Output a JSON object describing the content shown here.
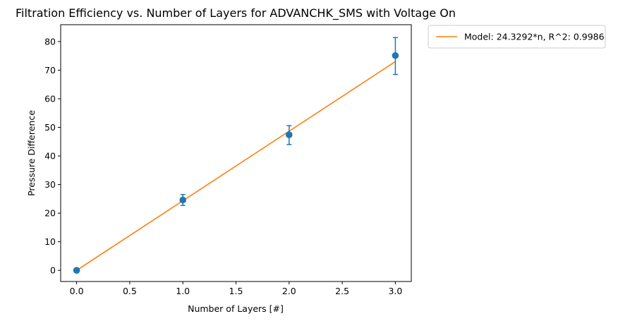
{
  "chart_data": {
    "type": "scatter",
    "title": "Filtration Efficiency vs. Number of Layers for ADVANCHK_SMS with Voltage On",
    "xlabel": "Number of Layers [#]",
    "ylabel": "Pressure Difference",
    "xlim": [
      -0.15,
      3.15
    ],
    "ylim": [
      -3.9,
      85.9
    ],
    "grid": false,
    "legend_position": "outside-top-right",
    "x_ticks": [
      "0.0",
      "0.5",
      "1.0",
      "1.5",
      "2.0",
      "2.5",
      "3.0"
    ],
    "y_ticks": [
      "0",
      "10",
      "20",
      "30",
      "40",
      "50",
      "60",
      "70",
      "80"
    ],
    "measurements": {
      "color": "#1f77b4",
      "points": [
        {
          "x": 0,
          "y": 0,
          "err_low": 0,
          "err_high": 0
        },
        {
          "x": 1,
          "y": 24.6,
          "err_low": 22.7,
          "err_high": 26.5
        },
        {
          "x": 2,
          "y": 47.4,
          "err_low": 44.0,
          "err_high": 50.6
        },
        {
          "x": 3,
          "y": 75.1,
          "err_low": 68.5,
          "err_high": 81.4
        }
      ]
    },
    "model": {
      "name": "Model: 24.3292*n, R^2: 0.9986",
      "color": "#ff7f0e",
      "slope": 24.3292,
      "x_range": [
        0,
        3
      ]
    }
  }
}
